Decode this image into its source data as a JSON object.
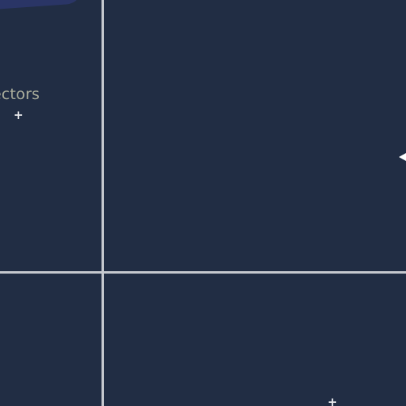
{
  "canvas": {
    "label": "ectors",
    "markers": [
      {
        "icon": "plus-icon",
        "glyph": "+"
      },
      {
        "icon": "plus-icon",
        "glyph": "+"
      }
    ],
    "pointer_icon": "arrow-pointer-icon"
  },
  "colors": {
    "background": "#212d44",
    "grid_line": "#c6c9cf",
    "label_text": "#a9ac9b",
    "marker": "#e8e9ec",
    "top_shape": "#2a3566"
  }
}
